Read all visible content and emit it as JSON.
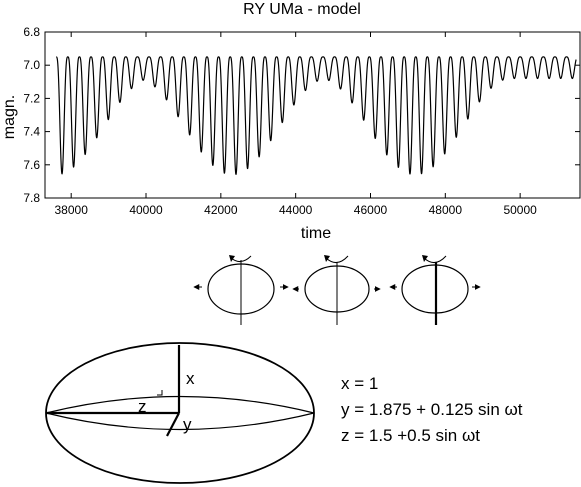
{
  "chart_data": {
    "type": "line",
    "title": "RY UMa - model",
    "xlabel": "time",
    "ylabel": "magn.",
    "xlim": [
      37300,
      51600
    ],
    "ylim": [
      7.8,
      6.8
    ],
    "y_inverted": true,
    "grid": false,
    "x_ticks": [
      "38000",
      "40000",
      "42000",
      "44000",
      "46000",
      "48000",
      "50000"
    ],
    "x_tick_values": [
      38000,
      40000,
      42000,
      44000,
      46000,
      48000,
      50000
    ],
    "y_ticks": [
      "6.8",
      "7.0",
      "7.2",
      "7.4",
      "7.6",
      "7.8"
    ],
    "y_tick_values": [
      6.8,
      7.0,
      7.2,
      7.4,
      7.6,
      7.8
    ],
    "series": [
      {
        "color": "#000000",
        "x_start": 37600,
        "x_end": 51500,
        "fast_period": 310,
        "slow_period": 5100,
        "slow_phase_zero": 37600,
        "max_mag": 6.95,
        "min_mag_at_strong_envelope": 7.66,
        "min_mag_at_weak_envelope": 7.08,
        "strong_envelope_centers": [
          37600,
          42300,
          47200
        ]
      }
    ]
  },
  "diagram": {
    "labels": {
      "x": "x",
      "y": "y",
      "z": "z"
    },
    "equations": {
      "x": "x = 1",
      "y": "y = 1.875 + 0.125 sin ωt",
      "z": "z = 1.5 +0.5 sin ωt"
    }
  }
}
